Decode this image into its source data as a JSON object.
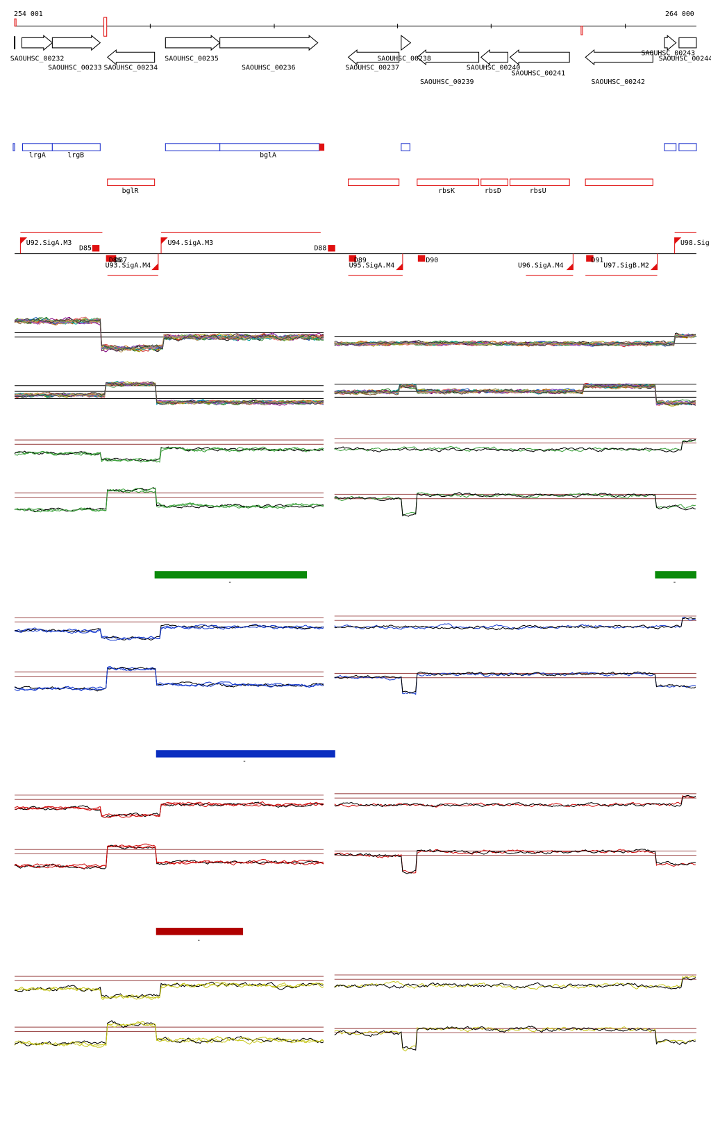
{
  "header": {
    "start": "254 001",
    "end": "264 000"
  },
  "genes": [
    "SAOUHSC_00232",
    "SAOUHSC_00233",
    "SAOUHSC_00234",
    "SAOUHSC_00235",
    "SAOUHSC_00236",
    "SAOUHSC_00237",
    "SAOUHSC_00238",
    "SAOUHSC_00239",
    "SAOUHSC_00240",
    "SAOUHSC_00241",
    "SAOUHSC_00242",
    "SAOUHSC_00243",
    "SAOUHSC_00244"
  ],
  "gene_names": [
    "lrgA",
    "lrgB",
    "bglA",
    "bglR",
    "rbsK",
    "rbsD",
    "rbsU"
  ],
  "regulatory": [
    "U92.SigA.M3",
    "D85",
    "D86",
    "D87",
    "U93.SigA.M4",
    "U94.SigA.M3",
    "D88",
    "D89",
    "U95.SigA.M4",
    "D90",
    "U96.SigA.M4",
    "D91",
    "U97.SigB.M2",
    "U98.Sig"
  ],
  "bar_labels": [
    "-",
    "-",
    "-",
    "-"
  ]
}
